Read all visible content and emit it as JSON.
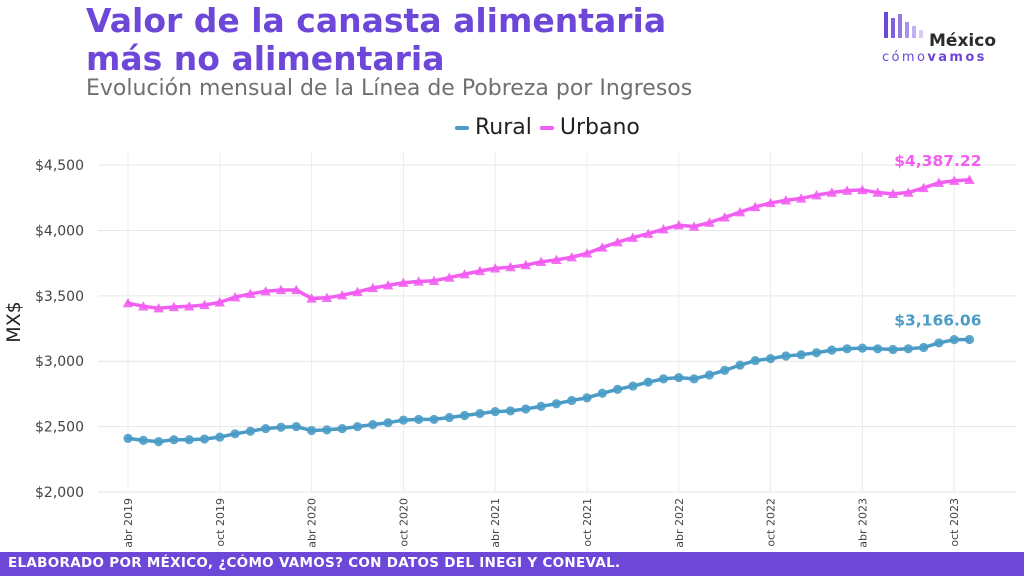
{
  "header": {
    "title": "Valor de la canasta alimentaria más no alimentaria",
    "subtitle": "Evolución mensual de la Línea de Pobreza por Ingresos"
  },
  "logo": {
    "name": "México",
    "tagline_a": "cómo",
    "tagline_b": "vamos"
  },
  "footer": {
    "text": "ELABORADO POR MÉXICO, ¿CÓMO VAMOS? CON DATOS DEL INEGI Y CONEVAL."
  },
  "colors": {
    "rural": "#4a9cc7",
    "urbano": "#f25ef2",
    "brand": "#6c47d8"
  },
  "chart_data": {
    "type": "line",
    "ylabel": "MX$",
    "ylim": [
      2000,
      4600
    ],
    "yticks": [
      2000,
      2500,
      3000,
      3500,
      4000,
      4500
    ],
    "ytick_labels": [
      "$2,000",
      "$2,500",
      "$3,000",
      "$3,500",
      "$4,000",
      "$4,500"
    ],
    "x_start": "2019-04",
    "xtick_labels": [
      "abr 2019",
      "oct 2019",
      "abr 2020",
      "oct 2020",
      "abr 2021",
      "oct 2021",
      "abr 2022",
      "oct 2022",
      "abr 2023",
      "oct 2023"
    ],
    "grid": true,
    "legend_position": "top-center",
    "series": [
      {
        "name": "Rural",
        "marker": "circle",
        "last_label": "$3,166.06",
        "values": [
          2410,
          2395,
          2385,
          2400,
          2400,
          2405,
          2420,
          2445,
          2465,
          2485,
          2495,
          2500,
          2470,
          2475,
          2485,
          2500,
          2515,
          2530,
          2550,
          2555,
          2555,
          2570,
          2585,
          2600,
          2615,
          2620,
          2635,
          2655,
          2675,
          2700,
          2720,
          2755,
          2785,
          2810,
          2840,
          2865,
          2875,
          2865,
          2895,
          2930,
          2970,
          3005,
          3020,
          3040,
          3050,
          3065,
          3085,
          3095,
          3100,
          3095,
          3090,
          3095,
          3105,
          3140,
          3165,
          3166.06
        ]
      },
      {
        "name": "Urbano",
        "marker": "triangle",
        "last_label": "$4,387.22",
        "values": [
          3445,
          3420,
          3405,
          3415,
          3420,
          3430,
          3450,
          3490,
          3515,
          3535,
          3545,
          3545,
          3480,
          3485,
          3505,
          3530,
          3560,
          3580,
          3600,
          3610,
          3615,
          3640,
          3665,
          3690,
          3710,
          3720,
          3735,
          3760,
          3775,
          3795,
          3825,
          3870,
          3910,
          3945,
          3975,
          4010,
          4040,
          4030,
          4060,
          4100,
          4140,
          4180,
          4210,
          4230,
          4245,
          4270,
          4290,
          4305,
          4310,
          4290,
          4280,
          4290,
          4325,
          4365,
          4380,
          4387.22
        ]
      }
    ]
  }
}
